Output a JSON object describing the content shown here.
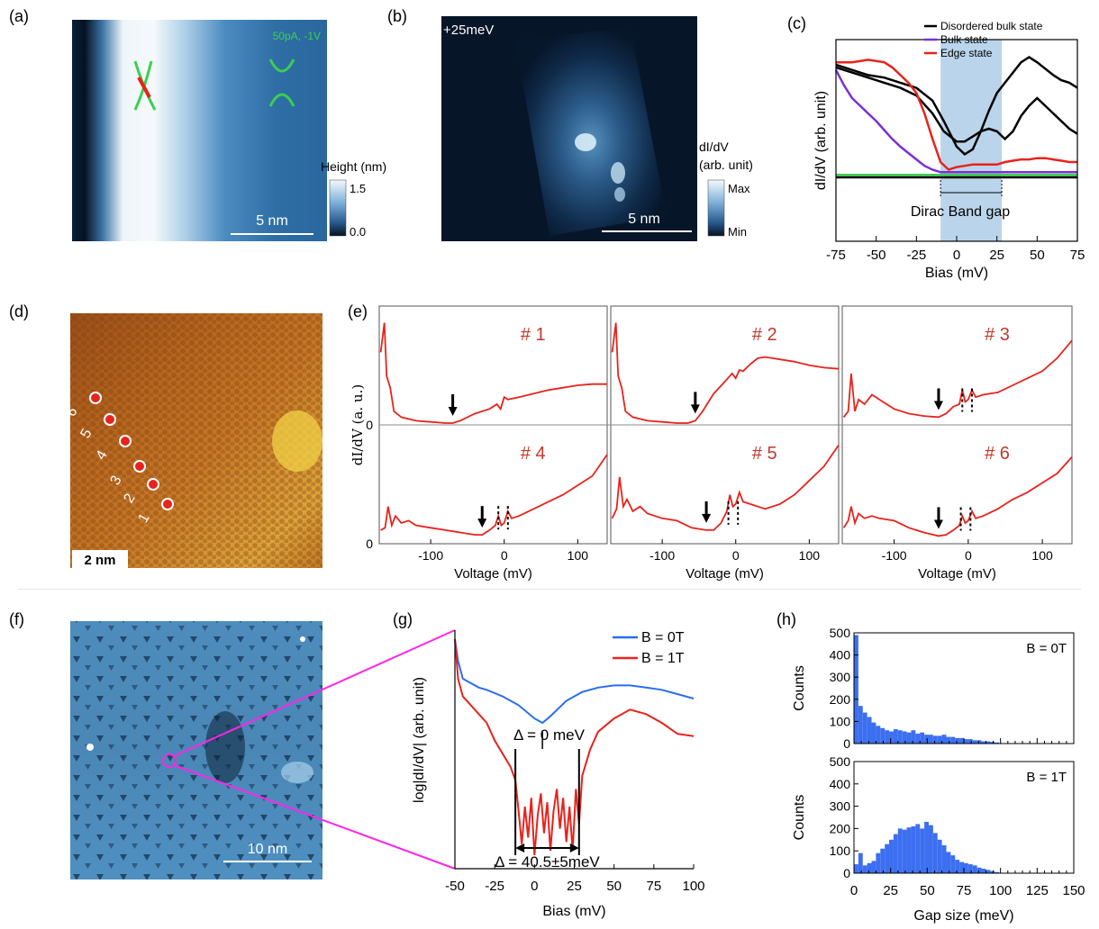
{
  "panels": {
    "a": {
      "label": "(a)",
      "annotation": "50pA, -1V",
      "colorbar": {
        "title": "Height (nm)",
        "max": "1.5",
        "min": "0.0"
      },
      "scalebar": "5 nm"
    },
    "b": {
      "label": "(b)",
      "energy": "+25meV",
      "colorbar": {
        "title_line1": "dI/dV",
        "title_line2": "(arb. unit)",
        "max": "Max",
        "min": "Min"
      },
      "scalebar": "5 nm"
    },
    "c": {
      "label": "(c)",
      "band_gap_label": "Dirac Band gap"
    },
    "d": {
      "label": "(d)",
      "scalebar": "2 nm",
      "points": [
        "1",
        "2",
        "3",
        "4",
        "5",
        "6"
      ]
    },
    "e": {
      "label": "(e)",
      "ylabel": "dI/dV (a. u.)",
      "ytick_zero": "0"
    },
    "f": {
      "label": "(f)",
      "scalebar": "10 nm"
    },
    "g": {
      "label": "(g)",
      "delta_top": "Δ  = 0 meV",
      "delta_bottom": "Δ = 40.5±5meV"
    },
    "h": {
      "label": "(h)"
    }
  },
  "colors": {
    "stm_blue_dark": "#08192e",
    "stm_blue_mid": "#2f6fa3",
    "stm_white": "#f4f8fb",
    "edge_red": "#e8231c",
    "bulk_purple": "#7b2fd6",
    "green": "#3ccf4e",
    "gap_band": "#a9cbe6",
    "spectra_red": "#e8231c",
    "label_red": "#c0392b",
    "series_blue": "#2a6df0",
    "hist_blue": "#3c6ff0"
  },
  "chart_data": [
    {
      "id": "c",
      "type": "line",
      "xlabel": "Bias (mV)",
      "ylabel": "dI/dV (arb. unit)",
      "xlim": [
        -75,
        75
      ],
      "xticks": [
        "-75",
        "-50",
        "-25",
        "0",
        "25",
        "50",
        "75"
      ],
      "shaded_range": [
        -10,
        28
      ],
      "legend": [
        "Disordered bulk state",
        "Bulk state",
        "Edge state"
      ],
      "legend_placement": "top-right",
      "series": [
        {
          "name": "Disordered bulk state",
          "color": "#000000",
          "x": [
            -75,
            -65,
            -55,
            -45,
            -35,
            -25,
            -15,
            -8,
            0,
            5,
            10,
            15,
            20,
            25,
            30,
            35,
            40,
            45,
            50,
            55,
            60,
            65,
            70,
            75
          ],
          "y": [
            0.88,
            0.84,
            0.8,
            0.78,
            0.74,
            0.7,
            0.6,
            0.44,
            0.24,
            0.18,
            0.22,
            0.36,
            0.52,
            0.66,
            0.74,
            0.82,
            0.9,
            0.94,
            0.9,
            0.85,
            0.8,
            0.76,
            0.74,
            0.7
          ]
        },
        {
          "name": "Disordered bulk state",
          "color": "#000000",
          "x": [
            -75,
            -65,
            -55,
            -45,
            -35,
            -25,
            -15,
            -8,
            0,
            5,
            10,
            15,
            20,
            25,
            30,
            35,
            40,
            45,
            50,
            55,
            60,
            65,
            70,
            75
          ],
          "y": [
            0.86,
            0.82,
            0.78,
            0.74,
            0.7,
            0.64,
            0.5,
            0.36,
            0.28,
            0.28,
            0.32,
            0.36,
            0.38,
            0.36,
            0.3,
            0.36,
            0.48,
            0.56,
            0.62,
            0.56,
            0.5,
            0.44,
            0.38,
            0.34
          ]
        },
        {
          "name": "Bulk state",
          "color": "#7b2fd6",
          "x": [
            -75,
            -70,
            -65,
            -60,
            -55,
            -50,
            -45,
            -40,
            -35,
            -30,
            -25,
            -20,
            -15,
            -10,
            -5,
            0,
            10,
            20,
            30,
            40,
            50,
            60,
            70,
            75
          ],
          "y": [
            0.84,
            0.72,
            0.62,
            0.56,
            0.5,
            0.44,
            0.37,
            0.3,
            0.24,
            0.19,
            0.14,
            0.09,
            0.06,
            0.04,
            0.04,
            0.04,
            0.04,
            0.04,
            0.04,
            0.04,
            0.04,
            0.04,
            0.04,
            0.04
          ]
        },
        {
          "name": "Edge state",
          "color": "#e8231c",
          "x": [
            -75,
            -65,
            -55,
            -45,
            -40,
            -35,
            -30,
            -25,
            -20,
            -15,
            -10,
            -5,
            0,
            5,
            10,
            15,
            20,
            25,
            30,
            35,
            40,
            45,
            50,
            55,
            60,
            65,
            70,
            75
          ],
          "y": [
            0.9,
            0.9,
            0.92,
            0.9,
            0.86,
            0.8,
            0.74,
            0.66,
            0.5,
            0.3,
            0.12,
            0.06,
            0.08,
            0.09,
            0.1,
            0.1,
            0.1,
            0.1,
            0.12,
            0.13,
            0.14,
            0.14,
            0.15,
            0.15,
            0.14,
            0.13,
            0.12,
            0.12
          ]
        },
        {
          "name": "",
          "color": "#3ccf4e",
          "x": [
            -75,
            75
          ],
          "y": [
            0.02,
            0.02
          ]
        },
        {
          "name": "",
          "color": "#000000",
          "x": [
            -75,
            75
          ],
          "y": [
            0.0,
            0.0
          ]
        }
      ]
    },
    {
      "id": "e",
      "type": "line",
      "xlabel": "Voltage (mV)",
      "ylabel": "dI/dV (a. u.)",
      "xlim": [
        -170,
        140
      ],
      "xticks": [
        "-100",
        "0",
        "100"
      ],
      "subplots": [
        {
          "label": "# 1",
          "arrow_x": -70,
          "dotted_x": [],
          "x": [
            -168,
            -163,
            -160,
            -155,
            -150,
            -140,
            -120,
            -100,
            -80,
            -70,
            -60,
            -40,
            -20,
            -10,
            -5,
            0,
            5,
            20,
            40,
            60,
            80,
            100,
            120,
            140
          ],
          "y": [
            0.6,
            0.85,
            0.4,
            0.3,
            0.1,
            0.05,
            0.02,
            0.01,
            0.0,
            0.0,
            0.02,
            0.08,
            0.12,
            0.16,
            0.12,
            0.22,
            0.2,
            0.22,
            0.25,
            0.28,
            0.3,
            0.32,
            0.33,
            0.33
          ]
        },
        {
          "label": "# 2",
          "arrow_x": -55,
          "dotted_x": [],
          "x": [
            -168,
            -163,
            -160,
            -155,
            -150,
            -140,
            -120,
            -100,
            -80,
            -65,
            -55,
            -45,
            -30,
            -15,
            -5,
            0,
            5,
            10,
            20,
            30,
            40,
            50,
            60,
            80,
            100,
            120,
            140
          ],
          "y": [
            0.6,
            0.85,
            0.4,
            0.3,
            0.1,
            0.05,
            0.02,
            0.01,
            0.0,
            0.0,
            0.02,
            0.1,
            0.25,
            0.35,
            0.42,
            0.38,
            0.45,
            0.44,
            0.5,
            0.55,
            0.56,
            0.55,
            0.54,
            0.52,
            0.49,
            0.47,
            0.46
          ]
        },
        {
          "label": "# 3",
          "arrow_x": -40,
          "dotted_x": [
            -8,
            5
          ],
          "x": [
            -168,
            -162,
            -158,
            -153,
            -148,
            -140,
            -130,
            -120,
            -100,
            -80,
            -60,
            -40,
            -30,
            -20,
            -12,
            -8,
            -4,
            0,
            5,
            10,
            20,
            40,
            60,
            80,
            100,
            120,
            140
          ],
          "y": [
            0.05,
            0.1,
            0.42,
            0.1,
            0.2,
            0.16,
            0.24,
            0.2,
            0.12,
            0.08,
            0.06,
            0.05,
            0.08,
            0.14,
            0.16,
            0.28,
            0.18,
            0.2,
            0.28,
            0.22,
            0.24,
            0.26,
            0.32,
            0.38,
            0.44,
            0.55,
            0.7
          ]
        },
        {
          "label": "# 4",
          "arrow_x": -30,
          "dotted_x": [
            -8,
            5
          ],
          "x": [
            -168,
            -162,
            -158,
            -153,
            -148,
            -140,
            -130,
            -120,
            -100,
            -80,
            -60,
            -40,
            -30,
            -20,
            -12,
            -8,
            -4,
            0,
            5,
            10,
            20,
            40,
            60,
            80,
            100,
            120,
            140
          ],
          "y": [
            0.1,
            0.12,
            0.3,
            0.14,
            0.22,
            0.16,
            0.18,
            0.14,
            0.12,
            0.1,
            0.08,
            0.06,
            0.06,
            0.1,
            0.14,
            0.22,
            0.14,
            0.16,
            0.26,
            0.2,
            0.22,
            0.28,
            0.34,
            0.4,
            0.48,
            0.56,
            0.74
          ]
        },
        {
          "label": "# 5",
          "arrow_x": -40,
          "dotted_x": [
            -10,
            3
          ],
          "x": [
            -168,
            -162,
            -158,
            -153,
            -148,
            -140,
            -130,
            -120,
            -100,
            -80,
            -60,
            -40,
            -30,
            -20,
            -12,
            -8,
            -4,
            0,
            5,
            10,
            20,
            40,
            60,
            80,
            100,
            120,
            140
          ],
          "y": [
            0.2,
            0.28,
            0.55,
            0.3,
            0.36,
            0.26,
            0.3,
            0.24,
            0.2,
            0.18,
            0.12,
            0.1,
            0.1,
            0.16,
            0.26,
            0.4,
            0.3,
            0.32,
            0.42,
            0.34,
            0.32,
            0.28,
            0.32,
            0.4,
            0.52,
            0.64,
            0.82
          ]
        },
        {
          "label": "# 6",
          "arrow_x": -40,
          "dotted_x": [
            -10,
            3
          ],
          "x": [
            -168,
            -162,
            -158,
            -153,
            -148,
            -140,
            -130,
            -120,
            -100,
            -80,
            -60,
            -40,
            -30,
            -20,
            -12,
            -8,
            -4,
            0,
            5,
            10,
            20,
            40,
            60,
            80,
            100,
            120,
            140
          ],
          "y": [
            0.12,
            0.18,
            0.3,
            0.16,
            0.24,
            0.2,
            0.22,
            0.2,
            0.18,
            0.12,
            0.08,
            0.05,
            0.06,
            0.1,
            0.14,
            0.22,
            0.16,
            0.18,
            0.26,
            0.2,
            0.22,
            0.28,
            0.36,
            0.42,
            0.5,
            0.58,
            0.72
          ]
        }
      ]
    },
    {
      "id": "g",
      "type": "line",
      "xlabel": "Bias (mV)",
      "ylabel": "log|dI/dV| (arb. unit)",
      "xlim": [
        -50,
        100
      ],
      "xticks": [
        "-50",
        "-25",
        "0",
        "25",
        "50",
        "75",
        "100"
      ],
      "legend_placement": "top-right",
      "series": [
        {
          "name": "B = 0T",
          "color": "#2a6df0",
          "x": [
            -50,
            -48,
            -45,
            -40,
            -35,
            -30,
            -20,
            -10,
            0,
            5,
            10,
            20,
            30,
            40,
            50,
            60,
            70,
            80,
            90,
            100
          ],
          "y": [
            0.98,
            0.88,
            0.8,
            0.78,
            0.76,
            0.75,
            0.72,
            0.68,
            0.62,
            0.6,
            0.63,
            0.7,
            0.74,
            0.76,
            0.77,
            0.77,
            0.76,
            0.75,
            0.73,
            0.71
          ]
        },
        {
          "name": "B = 1T",
          "color": "#e8231c",
          "x": [
            -50,
            -48,
            -45,
            -40,
            -35,
            -30,
            -25,
            -20,
            -15,
            -12,
            -10,
            -8,
            -6,
            -4,
            -2,
            0,
            2,
            4,
            6,
            8,
            10,
            12,
            14,
            16,
            18,
            20,
            22,
            24,
            26,
            28,
            30,
            35,
            40,
            50,
            60,
            70,
            80,
            90,
            100
          ],
          "y": [
            0.98,
            0.8,
            0.72,
            0.68,
            0.64,
            0.6,
            0.52,
            0.46,
            0.4,
            0.34,
            0.2,
            0.05,
            0.22,
            0.08,
            0.26,
            0.0,
            0.18,
            0.28,
            0.1,
            0.24,
            0.02,
            0.2,
            0.3,
            0.12,
            0.26,
            0.06,
            0.22,
            0.02,
            0.3,
            0.14,
            0.36,
            0.48,
            0.56,
            0.62,
            0.66,
            0.64,
            0.6,
            0.55,
            0.54
          ]
        }
      ],
      "markers": {
        "delta_0_x": 5,
        "gap_left": -12,
        "gap_right": 28
      }
    },
    {
      "id": "h",
      "type": "bar",
      "xlabel": "Gap size (meV)",
      "ylabel": "Counts",
      "xlim": [
        0,
        150
      ],
      "ylim": [
        0,
        500
      ],
      "xticks": [
        "0",
        "25",
        "50",
        "75",
        "100",
        "125",
        "150"
      ],
      "yticks": [
        "0",
        "100",
        "200",
        "300",
        "400",
        "500"
      ],
      "bin_width": 3,
      "subplots": [
        {
          "title": "B = 0T",
          "bin_starts": [
            0,
            3,
            6,
            9,
            12,
            15,
            18,
            21,
            24,
            27,
            30,
            33,
            36,
            39,
            42,
            45,
            48,
            51,
            54,
            57,
            60,
            63,
            66,
            69,
            72,
            75,
            78,
            81,
            84,
            87,
            90,
            93,
            96
          ],
          "values": [
            490,
            170,
            140,
            120,
            95,
            80,
            70,
            60,
            55,
            65,
            60,
            55,
            50,
            60,
            45,
            50,
            40,
            40,
            35,
            35,
            40,
            30,
            30,
            25,
            25,
            20,
            20,
            15,
            15,
            10,
            10,
            8,
            5
          ]
        },
        {
          "title": "B = 1T",
          "bin_starts": [
            0,
            3,
            6,
            9,
            12,
            15,
            18,
            21,
            24,
            27,
            30,
            33,
            36,
            39,
            42,
            45,
            48,
            51,
            54,
            57,
            60,
            63,
            66,
            69,
            72,
            75,
            78,
            81,
            84,
            87,
            90,
            93,
            96
          ],
          "values": [
            40,
            90,
            35,
            45,
            55,
            90,
            110,
            130,
            150,
            175,
            200,
            195,
            205,
            210,
            220,
            200,
            230,
            215,
            180,
            150,
            125,
            95,
            80,
            60,
            50,
            45,
            40,
            35,
            25,
            20,
            15,
            10,
            5
          ]
        }
      ]
    }
  ]
}
